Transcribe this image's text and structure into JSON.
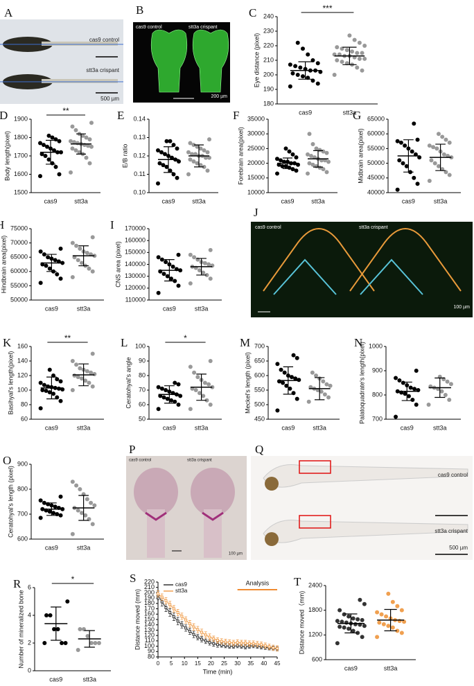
{
  "images": [
    {
      "label": "A",
      "texts": [
        "cas9 control",
        "stt3a crispant",
        "500 µm"
      ]
    },
    {
      "label": "B",
      "texts": [
        "cas9 control",
        "stt3a crispant",
        "200 µm"
      ]
    },
    {
      "label": "J",
      "texts": [
        "cas9 control",
        "stt3a crispant",
        "100 µm"
      ]
    },
    {
      "label": "P",
      "texts": [
        "cas9 control",
        "stt3a crispant",
        "100 µm"
      ]
    },
    {
      "label": "Q",
      "texts": [
        "cas9 control",
        "stt3a crispant",
        "500 µm"
      ]
    }
  ],
  "chart_data": [
    {
      "type": "dot",
      "label": "C",
      "ylabel": "Eye distance (pixel)",
      "categories": [
        "cas9",
        "stt3a"
      ],
      "values": [
        [
          192,
          194,
          196,
          198,
          199,
          200,
          201,
          202,
          203,
          203,
          204,
          205,
          206,
          207,
          208,
          210,
          214,
          218,
          222
        ],
        [
          200,
          203,
          205,
          207,
          208,
          209,
          210,
          211,
          211,
          212,
          213,
          213,
          214,
          214,
          215,
          215,
          216,
          217,
          218,
          219,
          220,
          222,
          224,
          227
        ]
      ],
      "means": [
        203,
        213
      ],
      "sds": [
        6,
        6
      ],
      "colors": [
        "#000000",
        "#999999"
      ],
      "ylim": [
        180,
        240
      ],
      "yticks": [
        180,
        190,
        200,
        210,
        220,
        230,
        240
      ],
      "significance": "***"
    },
    {
      "type": "dot",
      "label": "D",
      "ylabel": "Body length(pixel)",
      "categories": [
        "cas9",
        "stt3a"
      ],
      "values": [
        [
          1590,
          1600,
          1640,
          1660,
          1680,
          1700,
          1710,
          1720,
          1720,
          1730,
          1740,
          1750,
          1760,
          1770,
          1780,
          1790,
          1800,
          1810
        ],
        [
          1610,
          1660,
          1690,
          1710,
          1720,
          1730,
          1740,
          1750,
          1755,
          1760,
          1765,
          1770,
          1775,
          1780,
          1790,
          1800,
          1810,
          1820,
          1840,
          1860,
          1880
        ]
      ],
      "means": [
        1720,
        1765
      ],
      "sds": [
        65,
        55
      ],
      "colors": [
        "#000000",
        "#999999"
      ],
      "ylim": [
        1500,
        1900
      ],
      "yticks": [
        1500,
        1600,
        1700,
        1800,
        1900
      ],
      "significance": "**"
    },
    {
      "type": "dot",
      "label": "E",
      "ylabel": "E/B ratio",
      "categories": [
        "cas9",
        "stt3a"
      ],
      "values": [
        [
          0.105,
          0.108,
          0.11,
          0.112,
          0.114,
          0.115,
          0.116,
          0.117,
          0.118,
          0.119,
          0.12,
          0.121,
          0.122,
          0.123,
          0.124,
          0.126,
          0.128,
          0.128
        ],
        [
          0.11,
          0.112,
          0.114,
          0.115,
          0.116,
          0.117,
          0.118,
          0.119,
          0.119,
          0.12,
          0.12,
          0.121,
          0.121,
          0.122,
          0.122,
          0.123,
          0.124,
          0.125,
          0.126,
          0.127,
          0.129
        ]
      ],
      "means": [
        0.118,
        0.12
      ],
      "sds": [
        0.007,
        0.006
      ],
      "colors": [
        "#000000",
        "#999999"
      ],
      "ylim": [
        0.1,
        0.14
      ],
      "yticks": [
        {
          "value": 0.1,
          "label": "0.10"
        },
        0.11,
        0.12,
        0.13,
        0.14
      ]
    },
    {
      "type": "dot",
      "label": "F",
      "ylabel": "Forebrain area(pixel)",
      "categories": [
        "cas9",
        "stt3a"
      ],
      "values": [
        [
          16500,
          17500,
          18000,
          18500,
          19000,
          19000,
          19500,
          19500,
          20000,
          20000,
          20500,
          20500,
          21000,
          21500,
          22000,
          23000,
          24000,
          25000
        ],
        [
          16500,
          17000,
          18000,
          18500,
          19000,
          19500,
          20000,
          20500,
          21000,
          21000,
          21500,
          22000,
          22500,
          23000,
          23500,
          24000,
          24500,
          25000,
          26500,
          30000
        ]
      ],
      "means": [
        20000,
        21500
      ],
      "sds": [
        1800,
        2800
      ],
      "colors": [
        "#000000",
        "#999999"
      ],
      "ylim": [
        10000,
        35000
      ],
      "yticks": [
        10000,
        15000,
        20000,
        25000,
        30000,
        35000
      ]
    },
    {
      "type": "dot",
      "label": "G",
      "ylabel": "Midbrain area(pixel)",
      "categories": [
        "cas9",
        "stt3a"
      ],
      "values": [
        [
          41000,
          43000,
          45000,
          47000,
          49000,
          50000,
          51000,
          52000,
          53000,
          54000,
          55000,
          56000,
          57000,
          57500,
          58000,
          63500
        ],
        [
          44000,
          46000,
          47000,
          48000,
          49000,
          50000,
          51000,
          52000,
          52500,
          53000,
          54000,
          55000,
          55500,
          56000,
          57000,
          58000,
          59000,
          60000
        ]
      ],
      "means": [
        52500,
        52000
      ],
      "sds": [
        5500,
        4500
      ],
      "colors": [
        "#000000",
        "#999999"
      ],
      "ylim": [
        40000,
        65000
      ],
      "yticks": [
        40000,
        45000,
        50000,
        55000,
        60000,
        65000
      ]
    },
    {
      "type": "dot",
      "label": "H",
      "ylabel": "Hindbrain area(pixel)",
      "categories": [
        "cas9",
        "stt3a"
      ],
      "values": [
        [
          56000,
          57500,
          59000,
          60000,
          61000,
          62000,
          62500,
          63000,
          63500,
          64000,
          64500,
          65000,
          66000,
          67000,
          68000
        ],
        [
          58000,
          60000,
          61000,
          62000,
          63000,
          64000,
          65000,
          65500,
          66000,
          66500,
          67000,
          68000,
          69000,
          70000,
          72000
        ]
      ],
      "means": [
        63000,
        65500
      ],
      "sds": [
        3000,
        3500
      ],
      "colors": [
        "#000000",
        "#999999"
      ],
      "ylim": [
        50000,
        75000
      ],
      "yticks": [
        50000,
        55000,
        60000,
        65000,
        70000,
        75000
      ]
    },
    {
      "type": "dot",
      "label": "I",
      "ylabel": "CNS area (pixel)",
      "categories": [
        "cas9",
        "stt3a"
      ],
      "values": [
        [
          116000,
          122000,
          126000,
          128000,
          130000,
          132000,
          134000,
          135000,
          136000,
          138000,
          140000,
          142000,
          144000,
          146000,
          148000
        ],
        [
          124000,
          128000,
          131000,
          133000,
          135000,
          137000,
          138000,
          139000,
          140000,
          141000,
          142000,
          144000,
          146000,
          148000,
          152000
        ]
      ],
      "means": [
        135000,
        138000
      ],
      "sds": [
        9000,
        7000
      ],
      "colors": [
        "#000000",
        "#999999"
      ],
      "ylim": [
        110000,
        170000
      ],
      "yticks": [
        110000,
        120000,
        130000,
        140000,
        150000,
        160000,
        170000
      ]
    },
    {
      "type": "dot",
      "label": "K",
      "ylabel": "Basihyal's length(pixel)",
      "categories": [
        "cas9",
        "stt3a"
      ],
      "values": [
        [
          75,
          85,
          90,
          95,
          97,
          99,
          100,
          101,
          102,
          103,
          104,
          105,
          107,
          110,
          112,
          115,
          120,
          128
        ],
        [
          100,
          105,
          110,
          113,
          116,
          118,
          120,
          122,
          124,
          126,
          128,
          130,
          135,
          140,
          150
        ]
      ],
      "means": [
        103,
        121
      ],
      "sds": [
        15,
        15
      ],
      "colors": [
        "#000000",
        "#999999"
      ],
      "ylim": [
        60,
        160
      ],
      "yticks": [
        60,
        80,
        100,
        120,
        140,
        160
      ],
      "significance": "**"
    },
    {
      "type": "dot",
      "label": "L",
      "ylabel": "Ceratohyal's angle",
      "categories": [
        "cas9",
        "stt3a"
      ],
      "values": [
        [
          57,
          60,
          62,
          63,
          64,
          65,
          66,
          66,
          67,
          68,
          69,
          70,
          71,
          72,
          74,
          75
        ],
        [
          57,
          60,
          63,
          66,
          68,
          70,
          71,
          72,
          74,
          75,
          77,
          79,
          82,
          86,
          90
        ]
      ],
      "means": [
        67,
        72
      ],
      "sds": [
        6,
        9
      ],
      "colors": [
        "#000000",
        "#999999"
      ],
      "ylim": [
        50,
        100
      ],
      "yticks": [
        50,
        60,
        70,
        80,
        90,
        100
      ],
      "significance": "*"
    },
    {
      "type": "dot",
      "label": "M",
      "ylabel": "Meckel's length (pixel)",
      "categories": [
        "cas9",
        "stt3a"
      ],
      "values": [
        [
          480,
          520,
          540,
          555,
          565,
          575,
          580,
          585,
          590,
          595,
          600,
          610,
          620,
          640,
          660,
          670
        ],
        [
          510,
          525,
          535,
          545,
          550,
          555,
          560,
          565,
          570,
          580,
          590,
          600,
          610
        ]
      ],
      "means": [
        583,
        555
      ],
      "sds": [
        47,
        38
      ],
      "colors": [
        "#000000",
        "#999999"
      ],
      "ylim": [
        450,
        700
      ],
      "yticks": [
        450,
        500,
        550,
        600,
        650,
        700
      ]
    },
    {
      "type": "dot",
      "label": "N",
      "ylabel": "Palatoquadrate's length(pixel)",
      "categories": [
        "cas9",
        "stt3a"
      ],
      "values": [
        [
          710,
          760,
          780,
          795,
          805,
          810,
          815,
          820,
          825,
          830,
          840,
          850,
          860,
          870,
          900
        ],
        [
          760,
          780,
          800,
          815,
          825,
          830,
          835,
          845,
          855,
          865,
          875
        ]
      ],
      "means": [
        815,
        830
      ],
      "sds": [
        38,
        40
      ],
      "colors": [
        "#000000",
        "#999999"
      ],
      "ylim": [
        700,
        1000
      ],
      "yticks": [
        700,
        800,
        900,
        1000
      ]
    },
    {
      "type": "dot",
      "label": "O",
      "ylabel": "Ceratohyal's length (pixel)",
      "categories": [
        "cas9",
        "stt3a"
      ],
      "values": [
        [
          685,
          695,
          700,
          705,
          710,
          715,
          720,
          720,
          725,
          730,
          735,
          740,
          745,
          755,
          770
        ],
        [
          620,
          660,
          680,
          695,
          705,
          715,
          725,
          735,
          745,
          760,
          780,
          800,
          815,
          830
        ]
      ],
      "means": [
        720,
        725
      ],
      "sds": [
        25,
        50
      ],
      "colors": [
        "#000000",
        "#999999"
      ],
      "ylim": [
        600,
        900
      ],
      "yticks": [
        600,
        700,
        800,
        900
      ]
    },
    {
      "type": "dot",
      "label": "R",
      "ylabel": "Number of mineralized bone",
      "categories": [
        "cas9",
        "stt3a"
      ],
      "values": [
        [
          2,
          2,
          2,
          3,
          3,
          4,
          4,
          5
        ],
        [
          1.5,
          2,
          2,
          2,
          2.5,
          3,
          3
        ]
      ],
      "means": [
        3.4,
        2.3
      ],
      "sds": [
        1.2,
        0.6
      ],
      "colors": [
        "#000000",
        "#999999"
      ],
      "ylim": [
        0,
        6
      ],
      "yticks": [
        0,
        2,
        4,
        6
      ],
      "significance": "*"
    },
    {
      "type": "line",
      "label": "S",
      "xlabel": "Time (min)",
      "ylabel": "Distance moved (mm)",
      "x": [
        0,
        1.5,
        3,
        4.5,
        6,
        7.5,
        9,
        10.5,
        12,
        13.5,
        15,
        16.5,
        18,
        19.5,
        21,
        22.5,
        24,
        25.5,
        27,
        28.5,
        30,
        31.5,
        33,
        34.5,
        36,
        37.5,
        39,
        40.5,
        42,
        43.5,
        45
      ],
      "series": [
        {
          "name": "cas9",
          "color": "#333333",
          "values": [
            195,
            183,
            172,
            163,
            155,
            147,
            140,
            134,
            128,
            122,
            117,
            113,
            110,
            107,
            105,
            103,
            102,
            101,
            100,
            100,
            101,
            100,
            99,
            100,
            101,
            100,
            99,
            98,
            97,
            96,
            95
          ],
          "errors": [
            8,
            8,
            7,
            7,
            7,
            7,
            6,
            6,
            6,
            6,
            5,
            5,
            5,
            5,
            5,
            5,
            4,
            4,
            4,
            4,
            4,
            4,
            4,
            4,
            4,
            4,
            4,
            4,
            4,
            4,
            4
          ]
        },
        {
          "name": "stt3a",
          "color": "#f0a050",
          "values": [
            198,
            192,
            185,
            178,
            170,
            163,
            156,
            149,
            142,
            136,
            131,
            126,
            121,
            117,
            114,
            111,
            109,
            108,
            107,
            106,
            107,
            106,
            106,
            105,
            105,
            104,
            103,
            101,
            99,
            97,
            96
          ],
          "errors": [
            6,
            6,
            6,
            6,
            6,
            6,
            6,
            6,
            6,
            6,
            6,
            6,
            6,
            6,
            5,
            5,
            5,
            5,
            5,
            5,
            5,
            5,
            5,
            5,
            5,
            5,
            5,
            5,
            5,
            5,
            5
          ]
        }
      ],
      "xlim": [
        0,
        45
      ],
      "xticks": [
        0,
        5,
        10,
        15,
        20,
        25,
        30,
        35,
        40,
        45
      ],
      "ylim": [
        80,
        220
      ],
      "yticks": [
        80,
        90,
        100,
        110,
        120,
        130,
        140,
        150,
        160,
        170,
        180,
        190,
        200,
        210,
        220
      ],
      "annotation": {
        "text": "Analysis",
        "color": "#f08a30",
        "xrange": [
          30,
          45
        ]
      }
    },
    {
      "type": "dot",
      "label": "T",
      "ylabel": "Distance moved（mm)",
      "categories": [
        "cas9",
        "stt3a"
      ],
      "values": [
        [
          1000,
          1150,
          1250,
          1300,
          1350,
          1380,
          1400,
          1420,
          1450,
          1460,
          1480,
          1500,
          1520,
          1540,
          1560,
          1580,
          1600,
          1650,
          1700,
          1800,
          1950,
          2050
        ],
        [
          1150,
          1250,
          1300,
          1380,
          1420,
          1460,
          1500,
          1520,
          1540,
          1560,
          1600,
          1650,
          1700,
          1750,
          1800,
          1900,
          2000,
          2200
        ]
      ],
      "means": [
        1480,
        1560
      ],
      "sds": [
        230,
        260
      ],
      "colors": [
        "#333333",
        "#f0a050"
      ],
      "ylim": [
        600,
        2400
      ],
      "yticks": [
        600,
        1200,
        1800,
        2400
      ]
    }
  ]
}
